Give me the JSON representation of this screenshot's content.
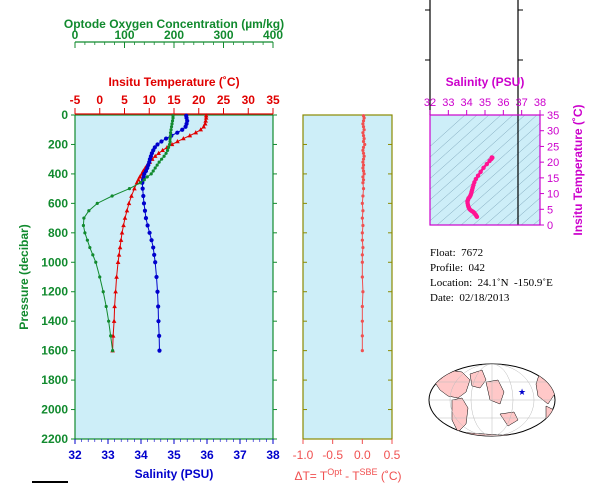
{
  "chart_data": [
    {
      "type": "line",
      "panel": "profile",
      "ylabel": "Pressure (decibar)",
      "ylim": [
        2200,
        0
      ],
      "y_ticks": [
        "0",
        "200",
        "400",
        "600",
        "800",
        "1000",
        "1200",
        "1400",
        "1600",
        "1800",
        "2000",
        "2200"
      ],
      "axes": {
        "oxygen": {
          "label": "Optode Oxygen Concentration (µm/kg)",
          "range": [
            0,
            400
          ],
          "ticks": [
            "0",
            "100",
            "200",
            "300",
            "400"
          ],
          "color": "#118a2e"
        },
        "temperature": {
          "label": "Insitu Temperature (˚C)",
          "range": [
            -5,
            35
          ],
          "ticks": [
            "-5",
            "0",
            "5",
            "10",
            "15",
            "20",
            "25",
            "30",
            "35"
          ],
          "color": "#e00000"
        },
        "salinity": {
          "label": "Salinity (PSU)",
          "range": [
            32,
            38
          ],
          "ticks": [
            "32",
            "33",
            "34",
            "35",
            "36",
            "37",
            "38"
          ],
          "color": "#0000cc"
        }
      },
      "pressure": [
        5,
        20,
        40,
        60,
        80,
        100,
        120,
        140,
        160,
        180,
        200,
        220,
        240,
        260,
        280,
        300,
        320,
        340,
        360,
        380,
        400,
        420,
        440,
        460,
        500,
        550,
        600,
        650,
        700,
        750,
        800,
        850,
        900,
        950,
        1000,
        1100,
        1200,
        1300,
        1400,
        1500,
        1600
      ],
      "series": [
        {
          "axis": "temperature",
          "color": "#e00000",
          "values": [
            21.5,
            21.5,
            21.4,
            21.3,
            21.0,
            20.4,
            19.4,
            18.2,
            16.9,
            15.7,
            14.6,
            13.6,
            12.7,
            11.9,
            11.2,
            10.6,
            10.1,
            9.6,
            9.2,
            8.8,
            8.5,
            8.1,
            7.8,
            7.5,
            7.0,
            6.4,
            5.9,
            5.5,
            5.1,
            4.8,
            4.5,
            4.3,
            4.1,
            3.9,
            3.7,
            3.4,
            3.2,
            3.0,
            2.9,
            2.7,
            2.6
          ]
        },
        {
          "axis": "salinity",
          "color": "#0000cc",
          "values": [
            35.37,
            35.38,
            35.4,
            35.38,
            35.35,
            35.25,
            35.1,
            34.92,
            34.76,
            34.62,
            34.5,
            34.42,
            34.37,
            34.33,
            34.3,
            34.27,
            34.25,
            34.22,
            34.19,
            34.15,
            34.1,
            34.08,
            34.06,
            34.04,
            34.05,
            34.07,
            34.09,
            34.12,
            34.15,
            34.2,
            34.26,
            34.32,
            34.37,
            34.4,
            34.43,
            34.47,
            34.5,
            34.52,
            34.53,
            34.55,
            34.56
          ]
        },
        {
          "axis": "oxygen",
          "color": "#118a2e",
          "values": [
            198,
            198,
            197,
            196,
            195,
            194,
            193,
            193,
            192,
            192,
            191,
            189,
            187,
            184,
            180,
            175,
            170,
            166,
            162,
            158,
            154,
            146,
            140,
            132,
            110,
            75,
            45,
            28,
            18,
            17,
            20,
            25,
            30,
            36,
            42,
            50,
            57,
            63,
            68,
            72,
            76
          ]
        }
      ]
    },
    {
      "type": "scatter",
      "panel": "delta-t",
      "xlabel_parts": [
        "ΔT= T",
        "Opt",
        " - T",
        "SBE",
        " (˚C)"
      ],
      "xlim": [
        -1.0,
        0.5
      ],
      "x_ticks": [
        "-1.0",
        "-0.5",
        "0.0",
        "0.5"
      ],
      "color": "#f05050",
      "pressure": [
        5,
        20,
        40,
        60,
        80,
        100,
        120,
        140,
        160,
        180,
        200,
        220,
        240,
        260,
        280,
        300,
        320,
        340,
        360,
        380,
        400,
        420,
        440,
        460,
        500,
        550,
        600,
        650,
        700,
        750,
        800,
        850,
        900,
        950,
        1000,
        1100,
        1200,
        1300,
        1400,
        1500,
        1600
      ],
      "values": [
        0.02,
        0.03,
        0.02,
        0.01,
        0.02,
        0.03,
        0.01,
        0.02,
        0.03,
        0.02,
        0.04,
        0.02,
        0.01,
        0.02,
        0.03,
        0.02,
        0.01,
        0.02,
        0.01,
        0.02,
        0.03,
        0.01,
        0.02,
        0.01,
        0.02,
        0.01,
        0.0,
        0.01,
        0.0,
        0.01,
        0.0,
        0.0,
        0.01,
        0.0,
        0.0,
        0.0,
        0.01,
        0.0,
        0.0,
        0.0,
        0.0
      ]
    },
    {
      "type": "scatter",
      "panel": "ts-diagram",
      "xlabel": "Salinity (PSU)",
      "ylabel": "Insitu Temperature (˚C)",
      "xlim": [
        32,
        38
      ],
      "ylim": [
        0,
        35
      ],
      "x_ticks": [
        "32",
        "33",
        "34",
        "35",
        "36",
        "37",
        "38"
      ],
      "y_ticks": [
        "0",
        "5",
        "10",
        "15",
        "20",
        "25",
        "30",
        "35"
      ],
      "color": "#ff1493",
      "points": [
        {
          "s": 35.37,
          "t": 21.5
        },
        {
          "s": 35.4,
          "t": 21.4
        },
        {
          "s": 35.35,
          "t": 21.0
        },
        {
          "s": 35.25,
          "t": 20.4
        },
        {
          "s": 35.1,
          "t": 19.4
        },
        {
          "s": 34.92,
          "t": 18.2
        },
        {
          "s": 34.76,
          "t": 16.9
        },
        {
          "s": 34.62,
          "t": 15.7
        },
        {
          "s": 34.5,
          "t": 14.6
        },
        {
          "s": 34.42,
          "t": 13.6
        },
        {
          "s": 34.37,
          "t": 12.7
        },
        {
          "s": 34.33,
          "t": 11.9
        },
        {
          "s": 34.3,
          "t": 11.2
        },
        {
          "s": 34.27,
          "t": 10.6
        },
        {
          "s": 34.25,
          "t": 10.1
        },
        {
          "s": 34.22,
          "t": 9.6
        },
        {
          "s": 34.19,
          "t": 9.2
        },
        {
          "s": 34.15,
          "t": 8.8
        },
        {
          "s": 34.1,
          "t": 8.5
        },
        {
          "s": 34.08,
          "t": 8.1
        },
        {
          "s": 34.06,
          "t": 7.8
        },
        {
          "s": 34.04,
          "t": 7.5
        },
        {
          "s": 34.05,
          "t": 7.0
        },
        {
          "s": 34.07,
          "t": 6.4
        },
        {
          "s": 34.09,
          "t": 5.9
        },
        {
          "s": 34.12,
          "t": 5.5
        },
        {
          "s": 34.15,
          "t": 5.1
        },
        {
          "s": 34.2,
          "t": 4.8
        },
        {
          "s": 34.26,
          "t": 4.5
        },
        {
          "s": 34.32,
          "t": 4.3
        },
        {
          "s": 34.37,
          "t": 4.1
        },
        {
          "s": 34.4,
          "t": 3.9
        },
        {
          "s": 34.43,
          "t": 3.7
        },
        {
          "s": 34.47,
          "t": 3.4
        },
        {
          "s": 34.5,
          "t": 3.2
        },
        {
          "s": 34.53,
          "t": 2.9
        },
        {
          "s": 34.56,
          "t": 2.6
        }
      ]
    }
  ],
  "info": {
    "float": "Float:  7672",
    "profile": "Profile:  042",
    "location": "Location:  24.1˚N  -150.9˚E",
    "date": "Date:  02/18/2013"
  },
  "map": {
    "marker": "★",
    "land_color": "#ffc8c8",
    "ocean_color": "#ffffff",
    "marker_color": "#0000cc"
  }
}
